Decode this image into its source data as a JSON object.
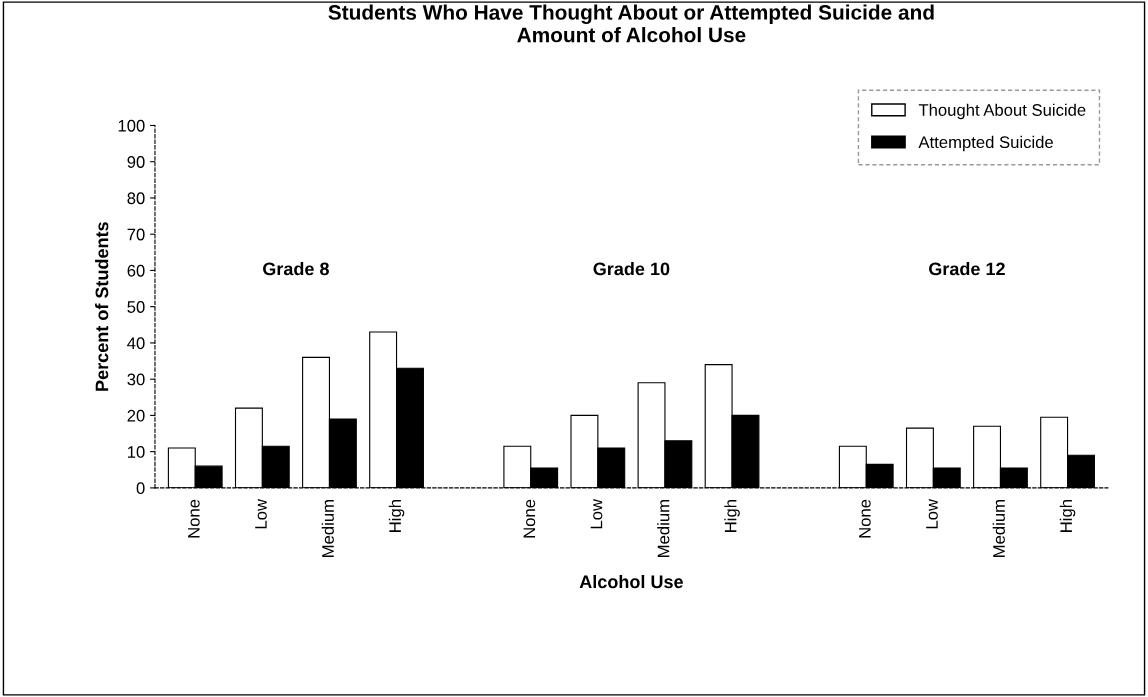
{
  "chart_data": {
    "type": "bar",
    "title": "Students Who Have Thought About or Attempted Suicide and\nAmount of Alcohol Use",
    "xlabel": "Alcohol Use",
    "ylabel": "Percent of Students",
    "categories": [
      "None",
      "Low",
      "Medium",
      "High",
      null,
      "None",
      "Low",
      "Medium",
      "High",
      null,
      "None",
      "Low",
      "Medium",
      "High"
    ],
    "series": [
      {
        "name": "Thought About Suicide",
        "color": "#ffffff",
        "values": [
          11,
          22,
          36,
          43,
          null,
          11.5,
          20,
          29,
          34,
          null,
          11.5,
          16.5,
          17,
          19.5
        ]
      },
      {
        "name": "Attempted Suicide",
        "color": "#000000",
        "values": [
          6,
          11.5,
          19,
          33,
          null,
          5.5,
          11,
          13,
          20,
          null,
          6.5,
          5.5,
          5.5,
          9
        ]
      }
    ],
    "annotations": [
      "Grade 8",
      "Grade 10",
      "Grade 12"
    ],
    "ylim": [
      0,
      100
    ],
    "yticks": [
      0,
      10,
      20,
      30,
      40,
      50,
      60,
      70,
      80,
      90,
      100
    ],
    "grid": false,
    "legend": "top right"
  }
}
